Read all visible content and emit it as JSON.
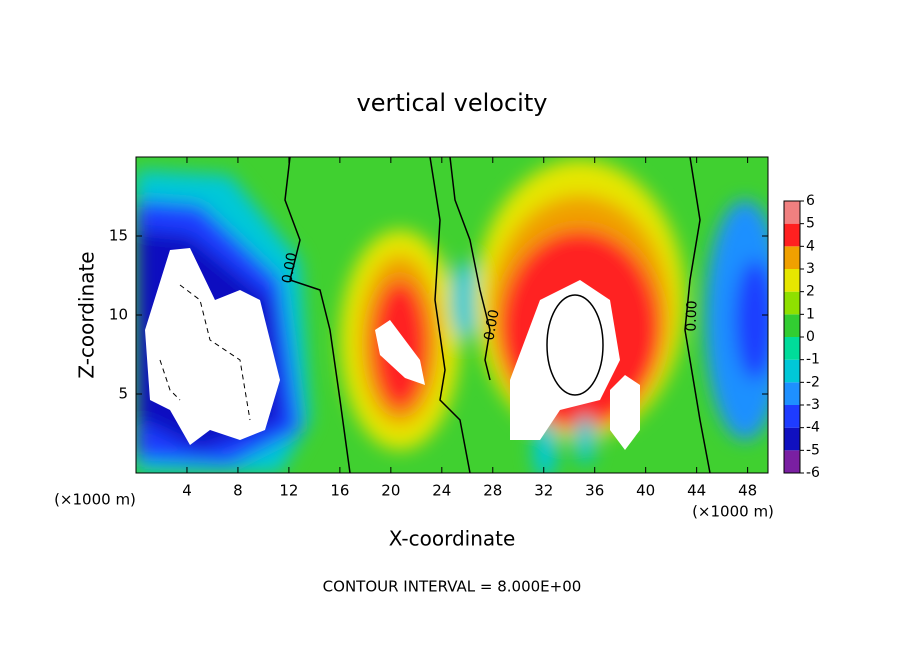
{
  "chart_data": {
    "type": "contour",
    "title": "vertical velocity",
    "xlabel": "X-coordinate",
    "ylabel": "Z-coordinate",
    "x_unit_labels": [
      "(×1000 m)",
      "(×1000 m)"
    ],
    "xlim": [
      0,
      49.6
    ],
    "xticks": [
      4,
      8,
      12,
      16,
      20,
      24,
      28,
      32,
      36,
      40,
      44,
      48
    ],
    "ylim": [
      0,
      20
    ],
    "yticks": [
      5,
      10,
      15
    ],
    "contour_labels": [
      "0.00",
      "0.00",
      "0.00"
    ],
    "footer": "CONTOUR INTERVAL = 8.000E+00",
    "colorbar": {
      "lim": [
        -6,
        6
      ],
      "ticks": [
        -6,
        -5,
        -4,
        -3,
        -2,
        -1,
        0,
        1,
        2,
        3,
        4,
        5,
        6
      ],
      "colors": [
        "#7a1fa2",
        "#1010c0",
        "#1e3cff",
        "#1e90ff",
        "#00c8d8",
        "#00dc9a",
        "#32cd32",
        "#8fe000",
        "#e6e600",
        "#f0a000",
        "#ff2020",
        "#f08080"
      ]
    }
  }
}
